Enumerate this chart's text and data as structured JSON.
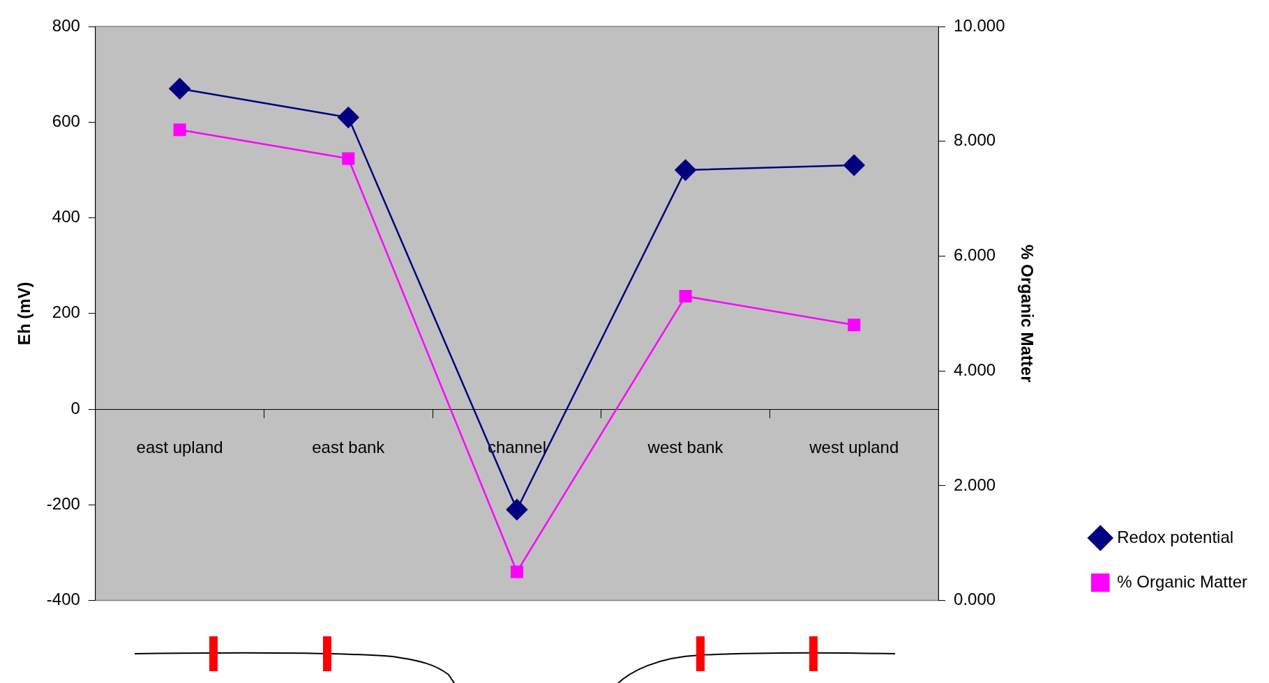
{
  "chart_data": {
    "type": "line",
    "ylabel": "Eh (mV)",
    "y2label": "% Organic Matter",
    "categories": [
      "east upland",
      "east bank",
      "channel",
      "west bank",
      "west upland"
    ],
    "series": [
      {
        "name": "Redox potential",
        "color": "#000080",
        "values": [
          670,
          610,
          -210,
          500,
          510
        ],
        "marker": "diamond"
      },
      {
        "name": "% Organic Matter",
        "color": "#ff00ff",
        "values": [
          8.2,
          7.7,
          0.5,
          5.3,
          4.8
        ],
        "marker": "square",
        "axis": "y2"
      }
    ],
    "ylim": [
      -400,
      800
    ],
    "yticks": [
      -400,
      -200,
      0,
      200,
      400,
      600,
      800
    ],
    "y2lim": [
      0,
      10
    ],
    "y2ticks": [
      {
        "value": 0,
        "label": "0.000"
      },
      {
        "value": 2,
        "label": "2.000"
      },
      {
        "value": 4,
        "label": "4.000"
      },
      {
        "value": 6,
        "label": "6.000"
      },
      {
        "value": 8,
        "label": "8.000"
      },
      {
        "value": 10,
        "label": "10.000"
      }
    ],
    "grid": false,
    "legend": "bottom right"
  }
}
